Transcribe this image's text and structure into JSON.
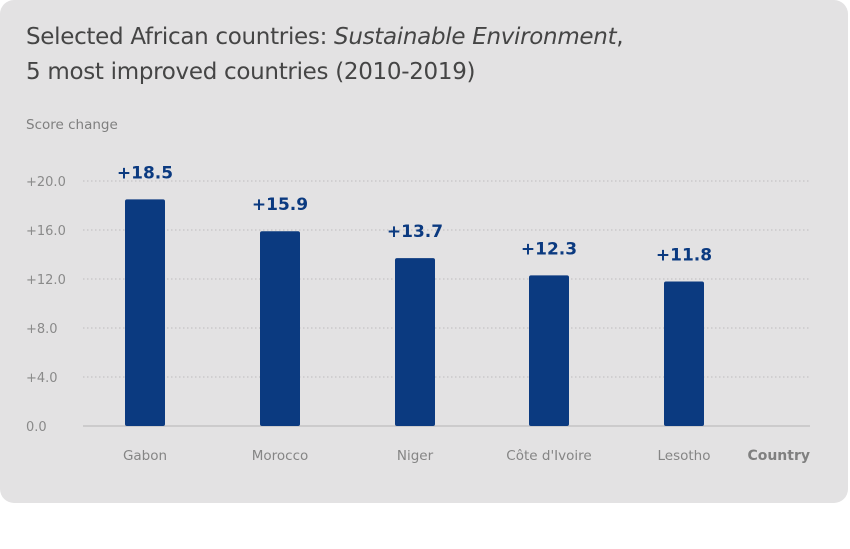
{
  "chart_data": {
    "type": "bar",
    "title_part1": "Selected African countries: ",
    "title_italic": "Sustainable Environment",
    "title_part2": ",",
    "title_line2": "5 most improved countries (2010-2019)",
    "xlabel": "Country",
    "ylabel": "Score change",
    "categories": [
      "Gabon",
      "Morocco",
      "Niger",
      "Côte d'Ivoire",
      "Lesotho"
    ],
    "values": [
      18.5,
      15.9,
      13.7,
      12.3,
      11.8
    ],
    "data_labels": [
      "+18.5",
      "+15.9",
      "+13.7",
      "+12.3",
      "+11.8"
    ],
    "yticks": [
      0,
      4,
      8,
      12,
      16,
      20
    ],
    "ytick_labels": [
      "0.0",
      "+4.0",
      "+8.0",
      "+12.0",
      "+16.0",
      "+20.0"
    ],
    "ylim": [
      0,
      20
    ],
    "grid": true,
    "bar_color": "#0b3a80",
    "label_color": "#0b3a80"
  }
}
